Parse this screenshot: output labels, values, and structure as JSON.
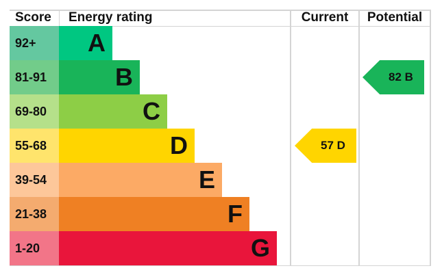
{
  "chart_data": {
    "type": "bar",
    "headers": {
      "score": "Score",
      "rating": "Energy rating",
      "current": "Current",
      "potential": "Potential"
    },
    "bands": [
      {
        "letter": "A",
        "range": "92+",
        "color": "#00c781",
        "light": "#64c8a0"
      },
      {
        "letter": "B",
        "range": "81-91",
        "color": "#19b459",
        "light": "#72cc8a"
      },
      {
        "letter": "C",
        "range": "69-80",
        "color": "#8dce46",
        "light": "#b5e08a"
      },
      {
        "letter": "D",
        "range": "55-68",
        "color": "#ffd500",
        "light": "#ffe46c"
      },
      {
        "letter": "E",
        "range": "39-54",
        "color": "#fcaa65",
        "light": "#fdc79a"
      },
      {
        "letter": "F",
        "range": "21-38",
        "color": "#ef8023",
        "light": "#f4ab6f"
      },
      {
        "letter": "G",
        "range": "1-20",
        "color": "#e9153b",
        "light": "#f27588"
      }
    ],
    "current": {
      "value": 57,
      "band": "D",
      "label": "57  D"
    },
    "potential": {
      "value": 82,
      "band": "B",
      "label": "82  B"
    }
  }
}
